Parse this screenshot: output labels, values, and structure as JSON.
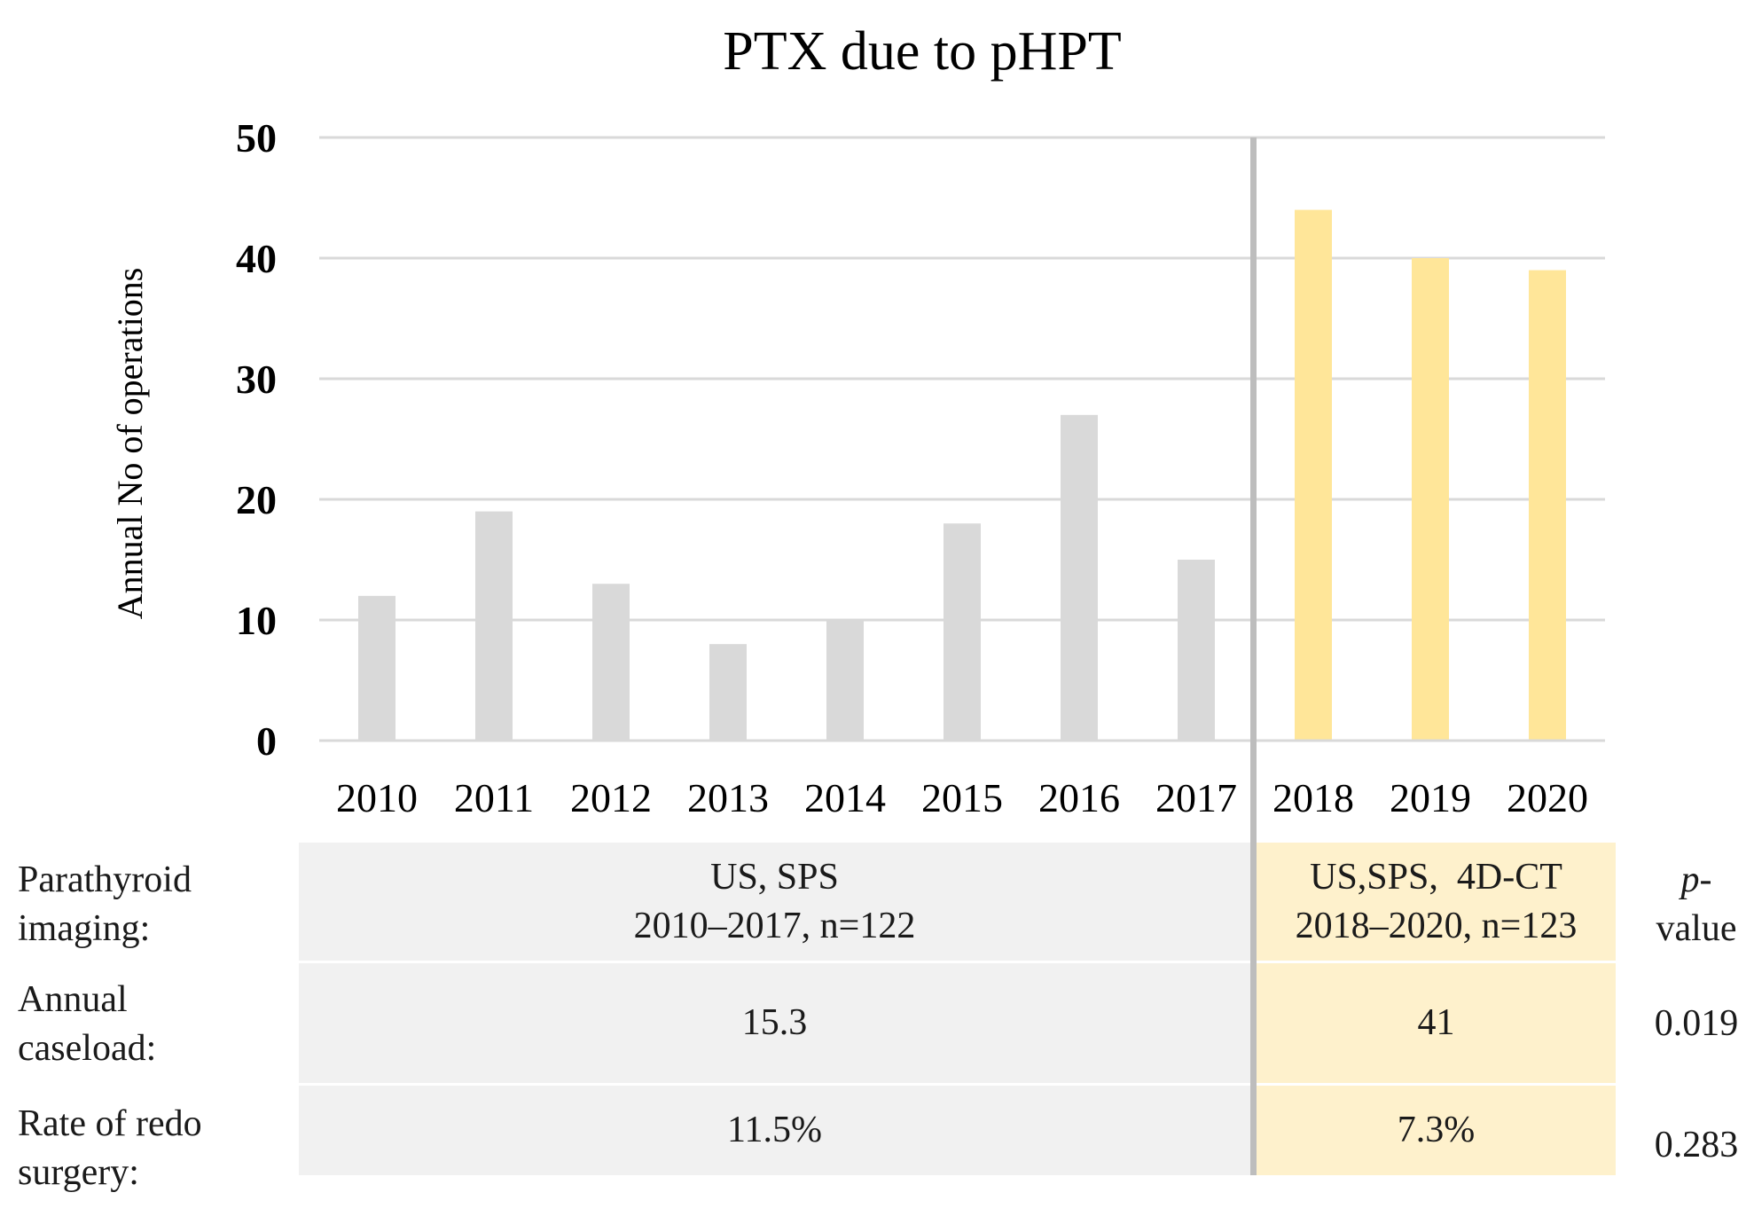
{
  "chart_data": {
    "type": "bar",
    "title": "PTX due to pHPT",
    "xlabel": "",
    "ylabel": "Annual No of operations",
    "categories": [
      "2010",
      "2011",
      "2012",
      "2013",
      "2014",
      "2015",
      "2016",
      "2017",
      "2018",
      "2019",
      "2020"
    ],
    "values": [
      12,
      19,
      13,
      8,
      10,
      18,
      27,
      15,
      44,
      40,
      39
    ],
    "ylim": [
      0,
      50
    ],
    "yticks": [
      0,
      10,
      20,
      30,
      40,
      50
    ],
    "grid": true,
    "periods": [
      {
        "name": "2010–2017",
        "categories": [
          "2010",
          "2011",
          "2012",
          "2013",
          "2014",
          "2015",
          "2016",
          "2017"
        ],
        "color": "#d9d9d9"
      },
      {
        "name": "2018–2020",
        "categories": [
          "2018",
          "2019",
          "2020"
        ],
        "color": "#ffe699"
      }
    ]
  },
  "table": {
    "rows": [
      {
        "label_lines": [
          "Parathyroid",
          "imaging:"
        ],
        "before_lines": [
          "US, SPS",
          "2010–2017, n=122"
        ],
        "after_lines": [
          "US,SPS,  4D-CT",
          "2018–2020, n=123"
        ],
        "p_lines": [
          "p-",
          "value"
        ]
      },
      {
        "label_lines": [
          "Annual",
          "caseload:"
        ],
        "before": "15.3",
        "after": "41",
        "p": "0.019"
      },
      {
        "label_lines": [
          "Rate of redo",
          "surgery:"
        ],
        "before": "11.5%",
        "after": "7.3%",
        "p": "0.283"
      }
    ]
  }
}
